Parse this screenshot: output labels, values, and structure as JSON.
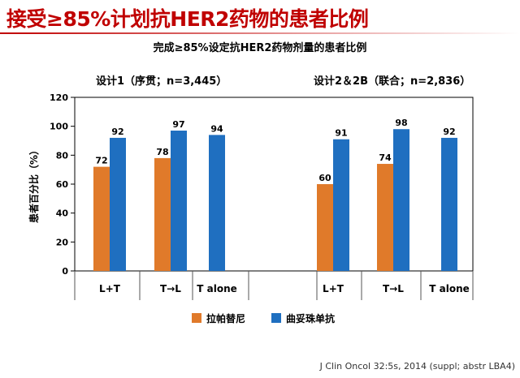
{
  "slide": {
    "title": "接受≥85%计划抗HER2药物的患者比例",
    "citation": "J Clin Oncol 32:5s, 2014 (suppl; abstr LBA4)"
  },
  "colors": {
    "lapatinib": "#e07a2a",
    "trastuzumab": "#1f6fc0",
    "title": "#c00000"
  },
  "chart_data": {
    "type": "bar",
    "title": "完成≥85%设定抗HER2药物剂量的患者比例",
    "ylabel": "患者百分比（%）",
    "ylim": [
      0,
      120
    ],
    "yticks": [
      0,
      20,
      40,
      60,
      80,
      100,
      120
    ],
    "grid": false,
    "legend_position": "bottom",
    "groups": [
      {
        "label": "设计1（序贯；n=3,445）",
        "categories": [
          "L+T",
          "T→L",
          "T alone"
        ],
        "series": [
          {
            "name": "拉帕替尼",
            "values": [
              72,
              78,
              null
            ]
          },
          {
            "name": "曲妥珠单抗",
            "values": [
              92,
              97,
              94
            ]
          }
        ]
      },
      {
        "label": "设计2＆2B（联合；n=2,836）",
        "categories": [
          "L+T",
          "T→L",
          "T alone"
        ],
        "series": [
          {
            "name": "拉帕替尼",
            "values": [
              60,
              74,
              null
            ]
          },
          {
            "name": "曲妥珠单抗",
            "values": [
              91,
              98,
              92
            ]
          }
        ]
      }
    ],
    "legend": [
      "拉帕替尼",
      "曲妥珠单抗"
    ]
  }
}
